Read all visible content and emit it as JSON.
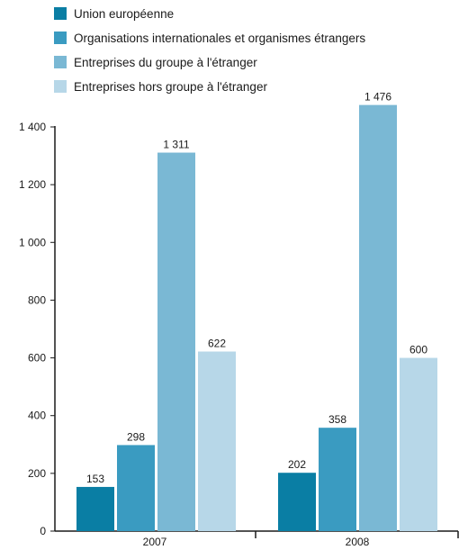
{
  "chart_data": {
    "type": "bar",
    "categories": [
      "2007",
      "2008"
    ],
    "series": [
      {
        "name": "Union européenne",
        "values": [
          153,
          202
        ],
        "color": "#0a7ea4"
      },
      {
        "name": "Organisations internationales et organismes étrangers",
        "values": [
          298,
          358
        ],
        "color": "#3a9bc1"
      },
      {
        "name": "Entreprises du groupe à l'étranger",
        "values": [
          1311,
          1476
        ],
        "color": "#7ab8d4"
      },
      {
        "name": "Entreprises hors groupe à l'étranger",
        "values": [
          622,
          600
        ],
        "color": "#b7d7e8"
      }
    ],
    "data_labels": [
      [
        "153",
        "202"
      ],
      [
        "298",
        "358"
      ],
      [
        "1 311",
        "1 476"
      ],
      [
        "622",
        "600"
      ]
    ],
    "ylim": [
      0,
      1400
    ],
    "y_ticks": [
      0,
      200,
      400,
      600,
      800,
      1000,
      1200,
      1400
    ],
    "y_tick_labels": [
      "0",
      "200",
      "400",
      "600",
      "800",
      "1 000",
      "1 200",
      "1 400"
    ],
    "grid": false,
    "legend_position": "top-left"
  }
}
